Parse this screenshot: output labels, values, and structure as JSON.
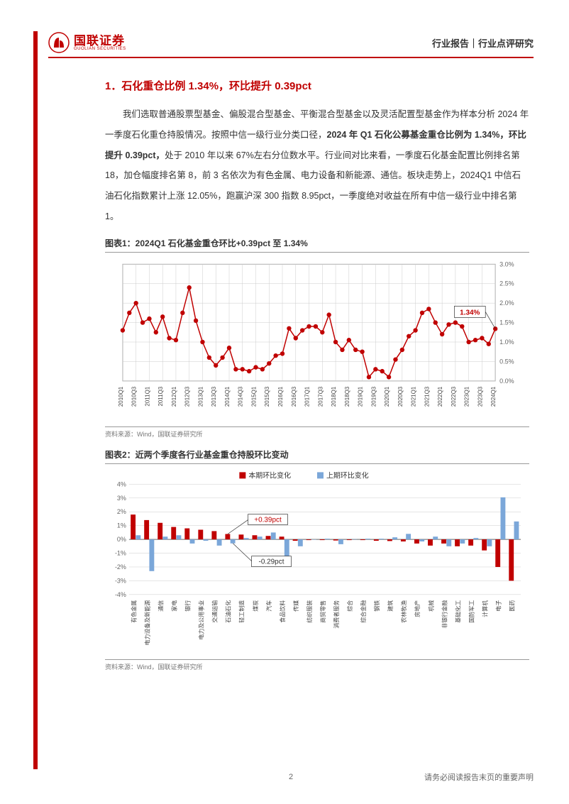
{
  "header": {
    "logo_cn": "国联证券",
    "logo_en": "GUOLIAN SECURITIES",
    "right": "行业报告｜行业点评研究"
  },
  "section": {
    "title": "1．石化重仓比例 1.34%，环比提升 0.39pct",
    "paragraph": "我们选取普通股票型基金、偏股混合型基金、平衡混合型基金以及灵活配置型基金作为样本分析 2024 年一季度石化重仓持股情况。按照中信一级行业分类口径，<b>2024 年 Q1 石化公募基金重仓比例为 1.34%，环比提升 0.39pct，</b>处于 2010 年以来 67%左右分位数水平。行业间对比来看，一季度石化基金配置比例排名第 18，加仓幅度排名第 8，前 3 名依次为有色金属、电力设备和新能源、通信。板块走势上，2024Q1 中信石油石化指数累计上涨 12.05%，跑赢沪深 300 指数 8.95pct，一季度绝对收益在所有中信一级行业中排名第 1。"
  },
  "chart1": {
    "title": "图表1：2024Q1 石化基金重仓环比+0.39pct 至 1.34%",
    "source": "资料来源：Wind，国联证券研究所",
    "type": "line",
    "line_color": "#c00000",
    "marker_color": "#c00000",
    "marker_size": 3.2,
    "line_width": 1.5,
    "background": "#ffffff",
    "grid_color": "#cccccc",
    "plot_border_color": "#999999",
    "ylim": [
      0,
      3.0
    ],
    "ytick_step": 0.5,
    "y_format_pct": true,
    "ylabels": [
      "0.0%",
      "0.5%",
      "1.0%",
      "1.5%",
      "2.0%",
      "2.5%",
      "3.0%"
    ],
    "x_categories": [
      "2010Q1",
      "2010Q3",
      "2011Q1",
      "2011Q3",
      "2012Q1",
      "2012Q3",
      "2013Q1",
      "2013Q3",
      "2014Q1",
      "2014Q3",
      "2015Q1",
      "2015Q3",
      "2016Q1",
      "2016Q3",
      "2017Q1",
      "2017Q3",
      "2018Q1",
      "2018Q3",
      "2019Q1",
      "2019Q3",
      "2020Q1",
      "2020Q3",
      "2021Q1",
      "2021Q3",
      "2022Q1",
      "2022Q3",
      "2023Q1",
      "2023Q3",
      "2024Q1"
    ],
    "x_label_rotation": -90,
    "values": [
      1.3,
      1.75,
      2.0,
      1.5,
      1.6,
      1.25,
      1.65,
      1.1,
      1.05,
      1.75,
      2.4,
      1.55,
      1.0,
      0.6,
      0.4,
      0.6,
      0.85,
      0.3,
      0.3,
      0.25,
      0.35,
      0.3,
      0.45,
      0.65,
      0.7,
      1.35,
      1.1,
      1.3,
      1.4,
      1.4,
      1.25,
      1.7,
      1.0,
      0.8,
      1.05,
      0.8,
      0.75,
      0.1,
      0.3,
      0.25,
      0.1,
      0.55,
      0.8,
      1.15,
      1.3,
      1.75,
      1.85,
      1.5,
      1.2,
      1.45,
      1.5,
      1.4,
      1.0,
      1.05,
      1.1,
      0.95,
      1.34
    ],
    "values_per_category": 2,
    "last_value": 1.34,
    "annotation": {
      "text": "1.34%",
      "color": "#c00000",
      "fontsize": 11,
      "font_weight": "bold"
    }
  },
  "chart2": {
    "title": "图表2：近两个季度各行业基金重仓持股环比变动",
    "source": "资料来源：Wind，国联证券研究所",
    "type": "grouped_bar",
    "legend": [
      {
        "label": "本期环比变化",
        "color": "#c00000"
      },
      {
        "label": "上期环比变化",
        "color": "#7ba7d9"
      }
    ],
    "background": "#ffffff",
    "grid_color": "#cccccc",
    "ylim": [
      -4,
      4
    ],
    "ytick_step": 1,
    "ylabels": [
      "-4%",
      "-3%",
      "-2%",
      "-1%",
      "0%",
      "1%",
      "2%",
      "3%",
      "4%"
    ],
    "x_label_rotation": -90,
    "bar_width": 0.38,
    "categories": [
      "有色金属",
      "电力设备及新能源",
      "通信",
      "家电",
      "银行",
      "电力及公用事业",
      "交通运输",
      "石油石化",
      "轻工制造",
      "煤炭",
      "汽车",
      "食品饮料",
      "传媒",
      "纺织服装",
      "商贸零售",
      "消费者服务",
      "综合",
      "综合金融",
      "钢铁",
      "建筑",
      "农林牧渔",
      "房地产",
      "机械",
      "非银行金融",
      "基础化工",
      "国防军工",
      "计算机",
      "电子",
      "医药"
    ],
    "series_current": [
      1.8,
      1.4,
      1.2,
      0.9,
      0.8,
      0.7,
      0.6,
      0.39,
      0.35,
      0.3,
      0.25,
      0.2,
      -0.1,
      -0.05,
      -0.05,
      -0.08,
      -0.05,
      -0.05,
      -0.1,
      -0.12,
      -0.15,
      -0.3,
      -0.45,
      -0.3,
      -0.5,
      -0.45,
      -0.8,
      -2.0,
      -3.0
    ],
    "series_prev": [
      0.3,
      -2.3,
      0.2,
      0.3,
      -0.3,
      -0.1,
      -0.45,
      -0.29,
      0.1,
      0.2,
      0.5,
      -1.2,
      -0.5,
      -0.02,
      0.05,
      -0.35,
      0.02,
      0.05,
      0.05,
      0.15,
      0.4,
      -0.15,
      0.2,
      -0.5,
      -0.3,
      0.1,
      -0.5,
      3.05,
      1.3
    ],
    "annotation_current": {
      "text": "+0.39pct",
      "color": "#c00000",
      "fontsize": 10
    },
    "annotation_prev": {
      "text": "-0.29pct",
      "color": "#333333",
      "fontsize": 10
    }
  },
  "footer": {
    "page": "2",
    "disclaimer": "请务必阅读报告末页的重要声明"
  }
}
